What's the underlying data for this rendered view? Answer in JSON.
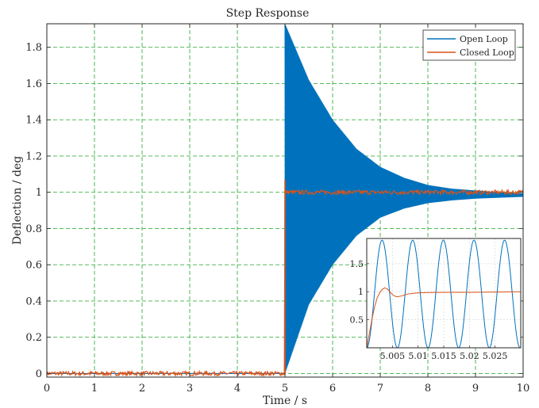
{
  "colors": {
    "open_loop": "#0072BD",
    "closed_loop": "#D95319",
    "grid": "#3cb043",
    "axes": "#262626",
    "background": "#ffffff"
  },
  "chart_data": [
    {
      "type": "line",
      "title": "Step Response",
      "xlabel": "Time / s",
      "ylabel": "Deflection / deg",
      "xlim": [
        0,
        10
      ],
      "ylim": [
        -0.02,
        1.93
      ],
      "xticks": [
        0,
        1,
        2,
        3,
        4,
        5,
        6,
        7,
        8,
        9,
        10
      ],
      "yticks": [
        0,
        0.2,
        0.4,
        0.6,
        0.8,
        1,
        1.2,
        1.4,
        1.6,
        1.8
      ],
      "xtick_labels": [
        "0",
        "1",
        "2",
        "3",
        "4",
        "5",
        "6",
        "7",
        "8",
        "9",
        "10"
      ],
      "ytick_labels": [
        "0",
        "0.2",
        "0.4",
        "0.6",
        "0.8",
        "1",
        "1.2",
        "1.4",
        "1.6",
        "1.8"
      ],
      "grid": true,
      "legend_position": "top-right",
      "series": [
        {
          "name": "Open Loop",
          "kind": "decaying-oscillation-envelope",
          "step_time": 5,
          "envelope_x": [
            5,
            5.5,
            6,
            6.5,
            7,
            7.5,
            8,
            8.5,
            9,
            9.5,
            10
          ],
          "envelope_upper": [
            1.93,
            1.62,
            1.4,
            1.24,
            1.14,
            1.08,
            1.04,
            1.02,
            1.01,
            1.0,
            0.995
          ],
          "envelope_lower": [
            0.0,
            0.38,
            0.6,
            0.76,
            0.86,
            0.91,
            0.94,
            0.955,
            0.965,
            0.97,
            0.975
          ]
        },
        {
          "name": "Closed Loop",
          "kind": "step-with-noise",
          "step_time": 5,
          "x": [
            0,
            4.99,
            5.0,
            5.0,
            5.005,
            5.01,
            10
          ],
          "y": [
            0,
            0,
            0,
            1.07,
            1.0,
            1.0,
            1.0
          ],
          "noise_band": 0.012
        }
      ]
    },
    {
      "type": "line",
      "title": "",
      "xlim": [
        5.0,
        5.03
      ],
      "ylim": [
        0,
        1.95
      ],
      "xticks": [
        5.005,
        5.01,
        5.015,
        5.02,
        5.025
      ],
      "yticks": [
        0.5,
        1,
        1.5
      ],
      "xtick_labels": [
        "5.005",
        "5.01",
        "5.015",
        "5.02",
        "5.025"
      ],
      "ytick_labels": [
        "0.5",
        "1",
        "1.5"
      ],
      "grid": true,
      "series": [
        {
          "name": "Open Loop",
          "kind": "sinusoid",
          "offset": 0.96,
          "amplitude": 0.96,
          "period": 0.00597,
          "phase_time": 5.0
        },
        {
          "name": "Closed Loop",
          "x": [
            5.0,
            5.0005,
            5.001,
            5.0015,
            5.002,
            5.0025,
            5.003,
            5.0035,
            5.004,
            5.0045,
            5.005,
            5.0055,
            5.006,
            5.007,
            5.008,
            5.009,
            5.01,
            5.012,
            5.015,
            5.02,
            5.025,
            5.03
          ],
          "y": [
            0.0,
            0.25,
            0.5,
            0.72,
            0.88,
            0.98,
            1.04,
            1.07,
            1.05,
            1.0,
            0.95,
            0.92,
            0.91,
            0.93,
            0.96,
            0.97,
            0.98,
            0.985,
            0.99,
            0.99,
            0.995,
            1.0
          ]
        }
      ]
    }
  ]
}
